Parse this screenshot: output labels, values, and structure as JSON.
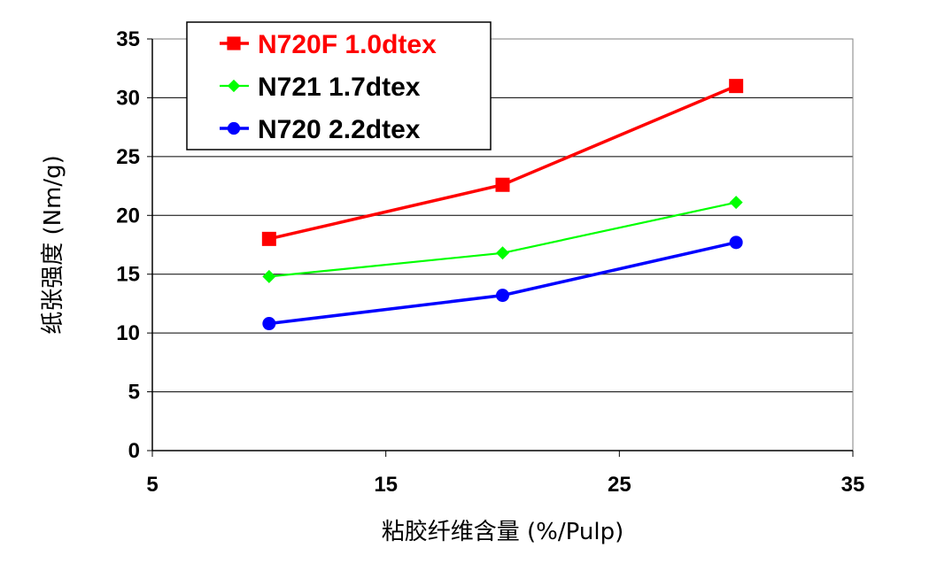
{
  "chart_data": {
    "type": "line",
    "xlabel": "粘胶纤维含量 (%/Pulp)",
    "ylabel": "纸张强度 (Nm/g)",
    "xlim": [
      5,
      35
    ],
    "ylim": [
      0,
      35
    ],
    "xticks": [
      "5",
      "15",
      "25",
      "35"
    ],
    "yticks": [
      "0",
      "5",
      "10",
      "15",
      "20",
      "25",
      "30",
      "35"
    ],
    "grid": "horizontal",
    "legend_position": "top-left",
    "series": [
      {
        "name": "N720F 1.0dtex",
        "color": "#ff0000",
        "marker": "square",
        "x": [
          10,
          20,
          30
        ],
        "y": [
          18.0,
          22.6,
          31.0
        ]
      },
      {
        "name": "N721 1.7dtex",
        "color": "#00ff00",
        "marker": "diamond",
        "x": [
          10,
          20,
          30
        ],
        "y": [
          14.8,
          16.8,
          21.1
        ]
      },
      {
        "name": "N720 2.2dtex",
        "color": "#0000ff",
        "marker": "circle",
        "x": [
          10,
          20,
          30
        ],
        "y": [
          10.8,
          13.2,
          17.7
        ]
      }
    ]
  }
}
